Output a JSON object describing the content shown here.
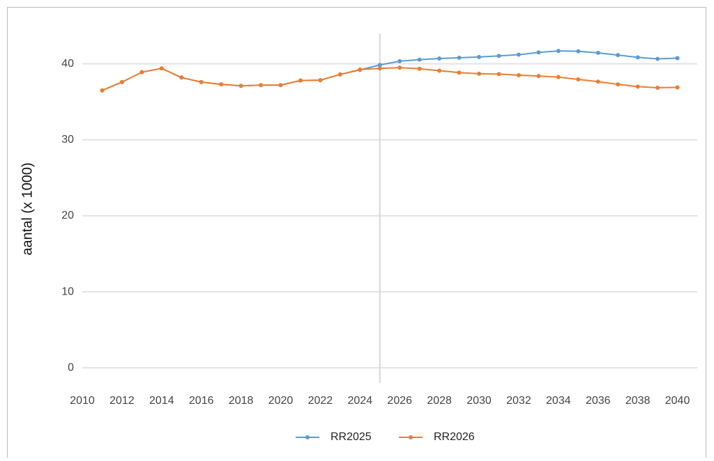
{
  "chart_data": {
    "type": "line",
    "ylabel": "aantal (x 1000)",
    "x": [
      2011,
      2012,
      2013,
      2014,
      2015,
      2016,
      2017,
      2018,
      2019,
      2020,
      2021,
      2022,
      2023,
      2024,
      2025,
      2026,
      2027,
      2028,
      2029,
      2030,
      2031,
      2032,
      2033,
      2034,
      2035,
      2036,
      2037,
      2038,
      2039,
      2040
    ],
    "series": [
      {
        "name": "RR2025",
        "color": "#5b9bd5",
        "values": [
          36.5,
          37.6,
          38.9,
          39.4,
          38.2,
          37.6,
          37.3,
          37.1,
          37.2,
          37.2,
          37.8,
          37.85,
          38.6,
          39.2,
          39.85,
          40.35,
          40.55,
          40.7,
          40.8,
          40.9,
          41.05,
          41.2,
          41.5,
          41.7,
          41.65,
          41.45,
          41.15,
          40.85,
          40.65,
          40.75
        ]
      },
      {
        "name": "RR2026",
        "color": "#ed7d31",
        "values": [
          36.5,
          37.6,
          38.9,
          39.4,
          38.2,
          37.6,
          37.3,
          37.1,
          37.2,
          37.2,
          37.8,
          37.85,
          38.6,
          39.25,
          39.4,
          39.5,
          39.35,
          39.1,
          38.85,
          38.7,
          38.65,
          38.5,
          38.4,
          38.25,
          37.95,
          37.65,
          37.3,
          37.0,
          36.85,
          36.9
        ]
      }
    ],
    "vline": 2025,
    "xlim": [
      2010,
      2041
    ],
    "ylim": [
      -2,
      44
    ],
    "xticks": [
      2010,
      2012,
      2014,
      2016,
      2018,
      2020,
      2022,
      2024,
      2026,
      2028,
      2030,
      2032,
      2034,
      2036,
      2038,
      2040
    ],
    "yticks": [
      0,
      10,
      20,
      30,
      40
    ],
    "grid": true,
    "legend": "bottom"
  }
}
